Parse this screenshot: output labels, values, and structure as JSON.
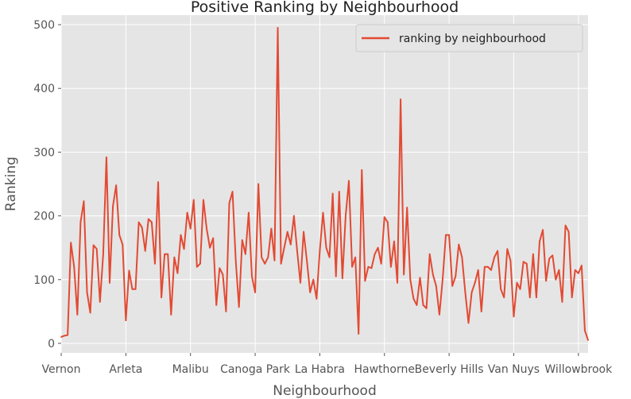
{
  "chart_data": {
    "type": "line",
    "title": "Positive Ranking by Neighbourhood",
    "xlabel": "Neighbourhood",
    "ylabel": "Ranking",
    "ylim": [
      -15,
      515
    ],
    "y_ticks": [
      0,
      100,
      200,
      300,
      400,
      500
    ],
    "x_tick_labels": [
      "Vernon",
      "Arleta",
      "Malibu",
      "Canoga Park",
      "La Habra",
      "Hawthorne",
      "Beverly Hills",
      "Van Nuys",
      "Willowbrook"
    ],
    "grid": true,
    "legend_position": "top-right",
    "series": [
      {
        "name": "ranking by neighbourhood",
        "color": "#e24a33",
        "values": [
          10,
          12,
          13,
          158,
          120,
          45,
          190,
          223,
          80,
          48,
          154,
          148,
          65,
          140,
          292,
          95,
          215,
          248,
          170,
          155,
          36,
          114,
          85,
          85,
          190,
          182,
          145,
          195,
          190,
          125,
          253,
          72,
          140,
          140,
          45,
          135,
          110,
          170,
          148,
          205,
          180,
          225,
          120,
          125,
          225,
          180,
          150,
          165,
          60,
          118,
          108,
          50,
          220,
          238,
          130,
          57,
          162,
          140,
          205,
          105,
          80,
          250,
          135,
          125,
          135,
          180,
          130,
          495,
          125,
          150,
          175,
          155,
          200,
          145,
          95,
          175,
          130,
          80,
          100,
          70,
          145,
          205,
          150,
          135,
          235,
          105,
          238,
          102,
          200,
          255,
          120,
          135,
          15,
          272,
          98,
          120,
          118,
          140,
          150,
          125,
          198,
          190,
          120,
          160,
          95,
          383,
          108,
          213,
          100,
          70,
          60,
          103,
          60,
          55,
          140,
          108,
          90,
          45,
          100,
          170,
          170,
          90,
          105,
          155,
          135,
          80,
          32,
          80,
          95,
          115,
          50,
          120,
          120,
          115,
          135,
          145,
          85,
          72,
          148,
          130,
          42,
          95,
          85,
          128,
          125,
          72,
          140,
          72,
          160,
          178,
          98,
          133,
          138,
          100,
          115,
          65,
          185,
          175,
          72,
          115,
          110,
          122,
          20,
          5
        ]
      }
    ]
  }
}
